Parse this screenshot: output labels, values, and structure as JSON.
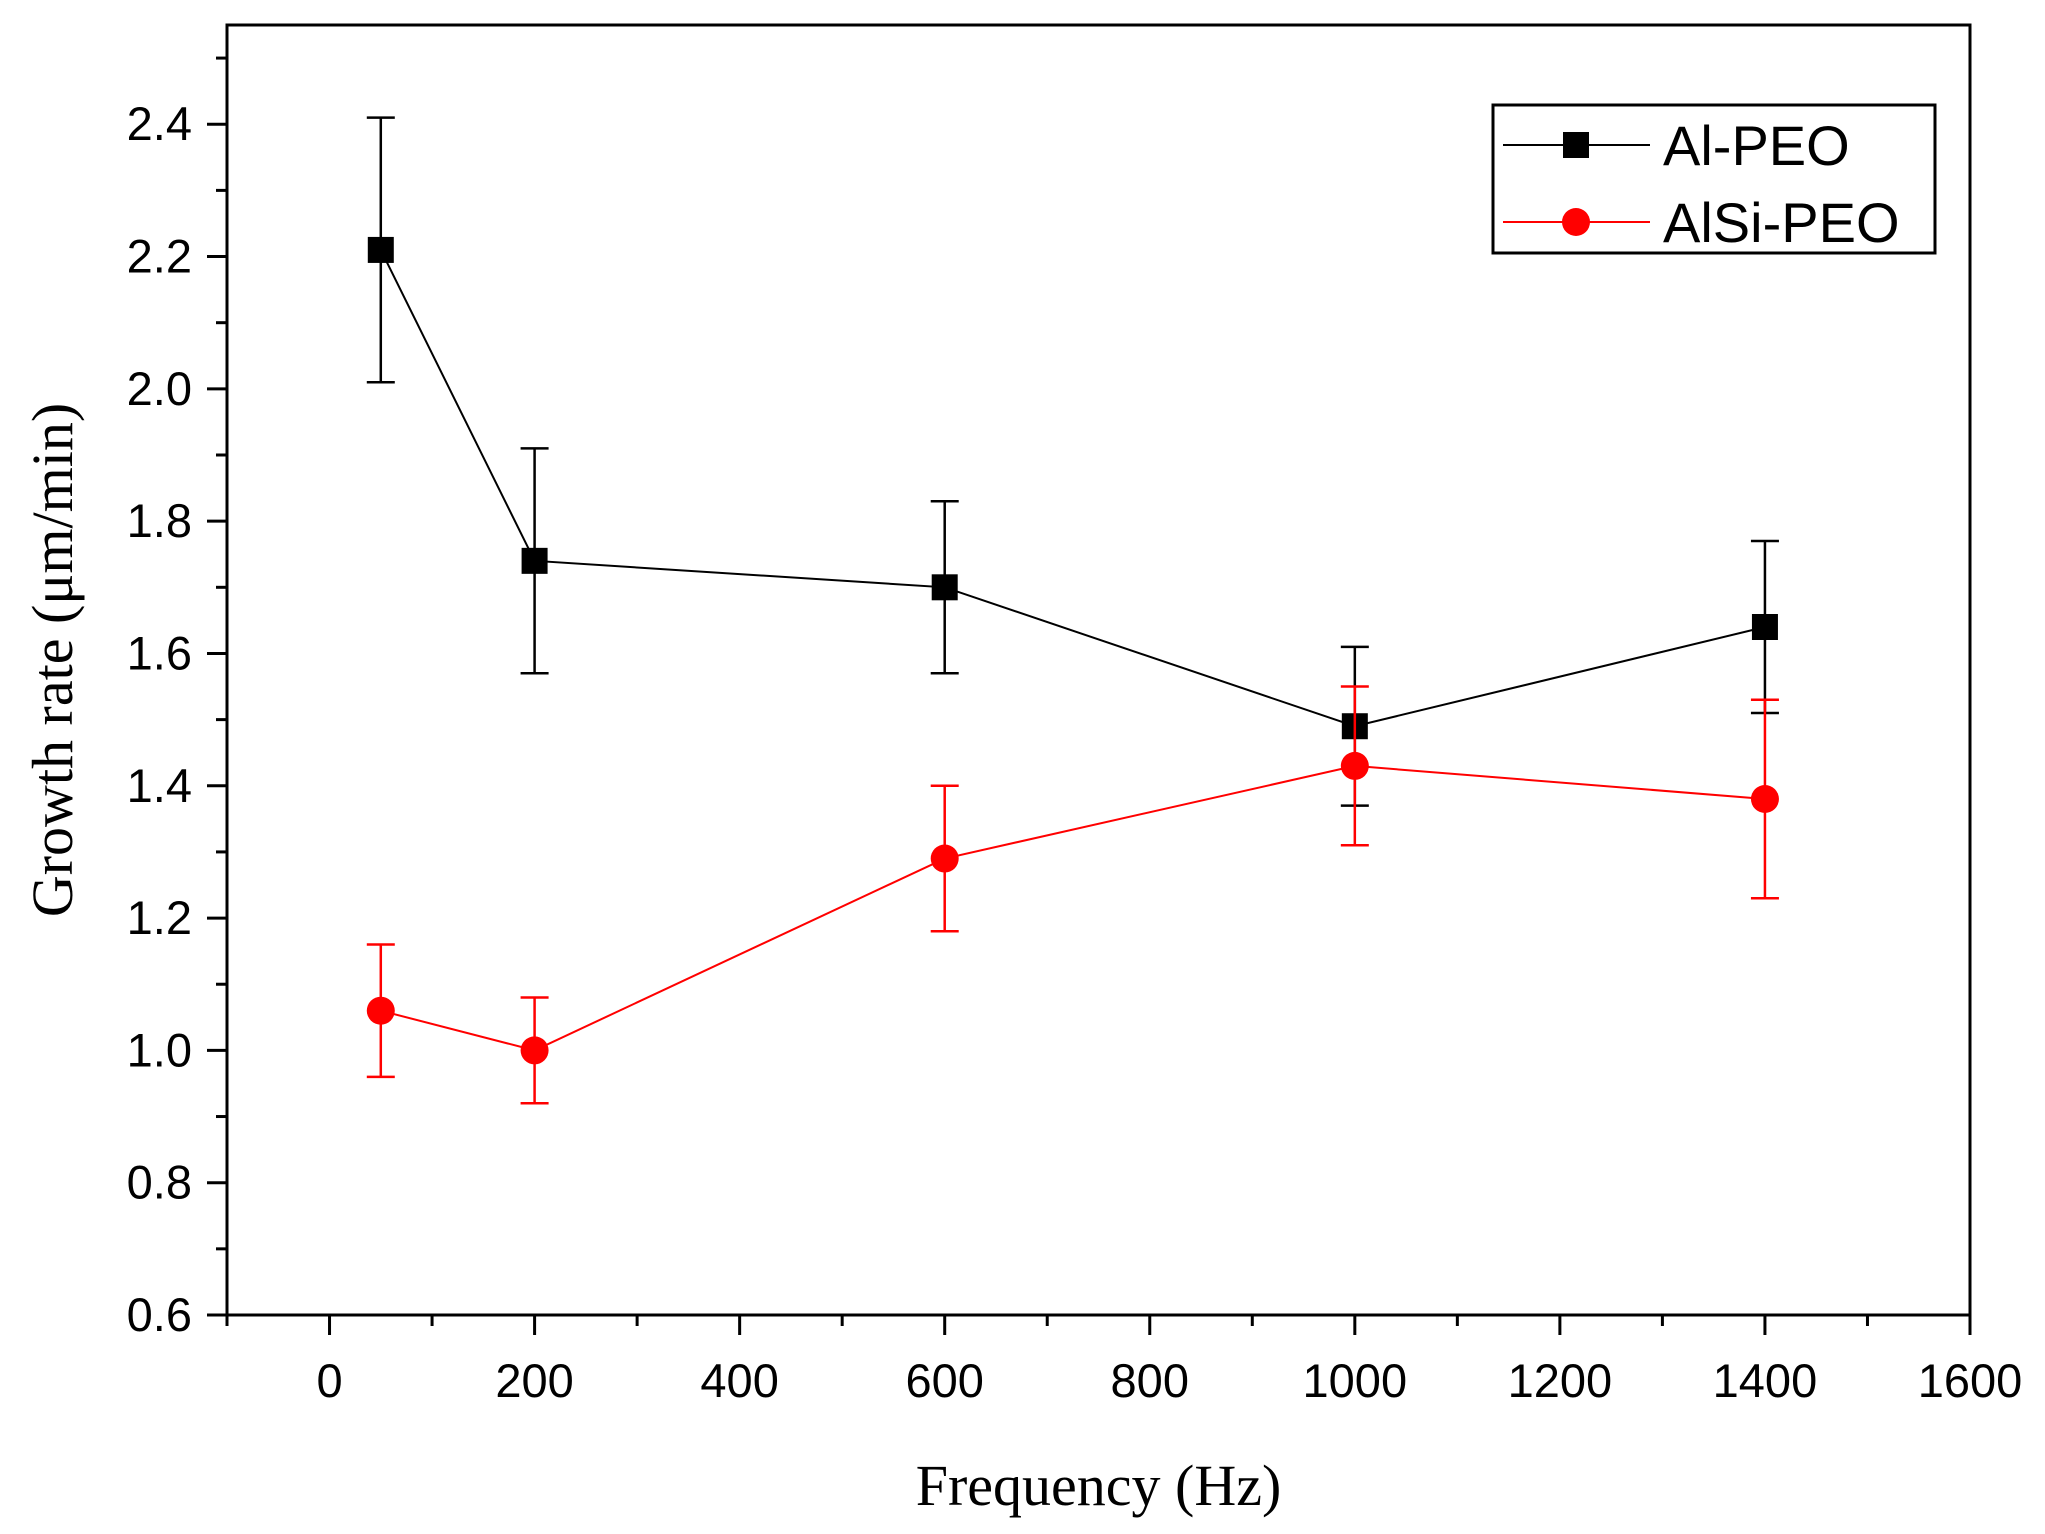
{
  "chart_data": {
    "type": "line",
    "title": "",
    "xlabel": "Frequency (Hz)",
    "ylabel": "Growth rate (μm/min)",
    "xlim": [
      -100,
      1600
    ],
    "ylim": [
      0.6,
      2.55
    ],
    "x_ticks": [
      0,
      200,
      400,
      600,
      800,
      1000,
      1200,
      1400,
      1600
    ],
    "x_tick_labels": [
      "0",
      "200",
      "400",
      "600",
      "800",
      "1000",
      "1200",
      "1400",
      "1600"
    ],
    "y_ticks": [
      0.6,
      0.8,
      1.0,
      1.2,
      1.4,
      1.6,
      1.8,
      2.0,
      2.2,
      2.4
    ],
    "y_tick_labels": [
      "0.6",
      "0.8",
      "1.0",
      "1.2",
      "1.4",
      "1.6",
      "1.8",
      "2.0",
      "2.2",
      "2.4"
    ],
    "grid": false,
    "legend_position": "top-right",
    "series": [
      {
        "name": "Al-PEO",
        "color": "#000000",
        "marker": "square",
        "x": [
          50,
          200,
          600,
          1000,
          1400
        ],
        "y": [
          2.21,
          1.74,
          1.7,
          1.49,
          1.64
        ],
        "err_low": [
          2.01,
          1.57,
          1.57,
          1.37,
          1.51
        ],
        "err_high": [
          2.41,
          1.91,
          1.83,
          1.61,
          1.77
        ]
      },
      {
        "name": "AlSi-PEO",
        "color": "#ff0000",
        "marker": "circle",
        "x": [
          50,
          200,
          600,
          1000,
          1400
        ],
        "y": [
          1.06,
          1.0,
          1.29,
          1.43,
          1.38
        ],
        "err_low": [
          0.96,
          0.92,
          1.18,
          1.31,
          1.23
        ],
        "err_high": [
          1.16,
          1.08,
          1.4,
          1.55,
          1.53
        ]
      }
    ]
  }
}
